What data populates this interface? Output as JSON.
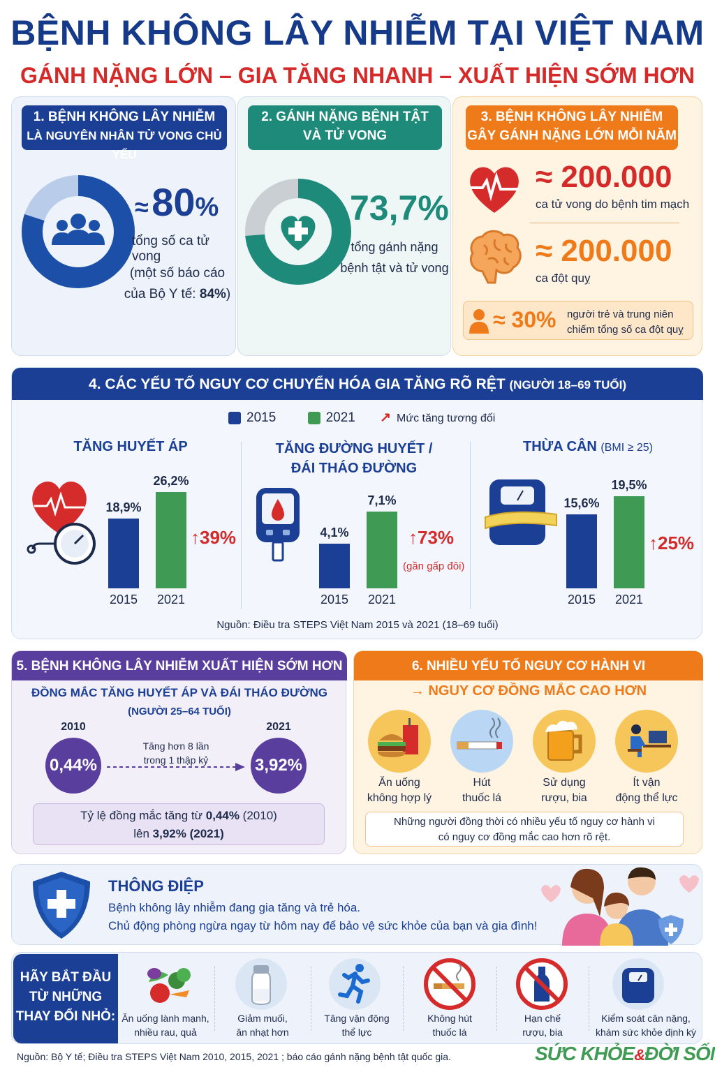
{
  "header": {
    "title": "BỆNH KHÔNG LÂY NHIỄM TẠI VIỆT NAM",
    "subtitle": "GÁNH NẶNG LỚN – GIA TĂNG NHANH – XUẤT HIỆN SỚM HƠN"
  },
  "colors": {
    "navy": "#1b3f94",
    "teal": "#1d8a7a",
    "orange": "#ee7a1a",
    "red": "#d42a2a",
    "green": "#3f9a53",
    "purple": "#5a3e9e"
  },
  "s1": {
    "h1": "1. BỆNH KHÔNG LÂY NHIỄM",
    "h2": "LÀ NGUYÊN NHÂN TỬ VONG CHỦ YẾU",
    "approx": "≈",
    "value": "80",
    "unit": "%",
    "caption": "tổng số ca tử vong",
    "note1": "(một số báo cáo",
    "note2a": "của Bộ Y tế: ",
    "note2b": "84%",
    "note2c": ")",
    "icon": "people-group-icon",
    "donut_fraction": 0.8
  },
  "s2": {
    "h1": "2. GÁNH NẶNG BỆNH TẬT",
    "h2": "VÀ TỬ VONG",
    "value": "73,7%",
    "caption1": "tổng gánh nặng",
    "caption2": "bệnh tật và tử vong",
    "icon": "heart-cross-icon",
    "donut_fraction": 0.737
  },
  "s3": {
    "h1": "3. BỆNH KHÔNG LÂY NHIỄM",
    "h2": "GÂY GÁNH NẶNG LỚN MỖI NĂM",
    "v1": "≈ 200.000",
    "c1": "ca tử vong do bệnh tim mạch",
    "v2": "≈ 200.000",
    "c2": "ca đột quỵ",
    "v3": "≈ 30%",
    "c3a": "người trẻ và trung niên",
    "c3b": "chiếm tổng số ca đột quỵ"
  },
  "s4": {
    "title": "4. CÁC YẾU TỐ NGUY CƠ CHUYỂN HÓA GIA TĂNG RÕ RỆT",
    "title_note": "(NGƯỜI 18–69 TUỔI)",
    "legend": {
      "a": "2015",
      "b": "2021",
      "c": "Mức tăng tương đối"
    },
    "source": "Nguồn: Điều tra STEPS Việt Nam 2015 và 2021 (18–69 tuổi)"
  },
  "chart_data": [
    {
      "type": "bar",
      "title": "TĂNG HUYẾT ÁP",
      "categories": [
        "2015",
        "2021"
      ],
      "values": [
        18.9,
        26.2
      ],
      "labels": [
        "18,9%",
        "26,2%"
      ],
      "change": "39%",
      "note": ""
    },
    {
      "type": "bar",
      "title": "TĂNG ĐƯỜNG HUYẾT /",
      "title2": "ĐÁI THÁO ĐƯỜNG",
      "categories": [
        "2015",
        "2021"
      ],
      "values": [
        4.1,
        7.1
      ],
      "labels": [
        "4,1%",
        "7,1%"
      ],
      "change": "73%",
      "note": "(gần gấp đôi)"
    },
    {
      "type": "bar",
      "title": "THỪA CÂN",
      "title_note": "(BMI ≥ 25)",
      "categories": [
        "2015",
        "2021"
      ],
      "values": [
        15.6,
        19.5
      ],
      "labels": [
        "15,6%",
        "19,5%"
      ],
      "change": "25%",
      "note": ""
    }
  ],
  "s5": {
    "title": "5. BỆNH KHÔNG LÂY NHIỄM XUẤT HIỆN SỚM HƠN",
    "sub1": "ĐỒNG MẮC TĂNG HUYẾT ÁP VÀ ĐÁI THÁO ĐƯỜNG",
    "sub2": "(NGƯỜI 25–64 TUỔI)",
    "y1": "2010",
    "v1": "0,44%",
    "y2": "2021",
    "v2": "3,92%",
    "arrow1": "Tăng hơn 8 lần",
    "arrow2": "trong 1 thập kỷ",
    "box1a": "Tỷ lệ đồng mắc tăng từ ",
    "box1b": "0,44%",
    "box1c": " (2010)",
    "box2a": "lên ",
    "box2b": "3,92% (2021)"
  },
  "s6": {
    "title": "6. NHIỀU YẾU TỐ NGUY CƠ HÀNH VI",
    "sub": "→ NGUY CƠ ĐỒNG MẮC CAO HƠN",
    "items": [
      {
        "l1": "Ăn uống",
        "l2": "không hợp lý",
        "icon": "fast-food-icon"
      },
      {
        "l1": "Hút",
        "l2": "thuốc lá",
        "icon": "cigarette-icon"
      },
      {
        "l1": "Sử dụng",
        "l2": "rượu, bia",
        "icon": "beer-mug-icon"
      },
      {
        "l1": "Ít vận",
        "l2": "động thể lực",
        "icon": "sedentary-person-icon"
      }
    ],
    "note1": "Những người đồng thời có nhiều yếu tố nguy cơ hành vi",
    "note2": "có nguy cơ đồng mắc cao hơn rõ rệt."
  },
  "message": {
    "title": "THÔNG ĐIỆP",
    "line1": "Bệnh không lây nhiễm đang gia tăng và trẻ hóa.",
    "line2": "Chủ động phòng ngừa ngay từ hôm nay để bảo vệ sức khỏe của bạn và gia đình!"
  },
  "actions": {
    "lead1": "HÃY BẮT ĐẦU",
    "lead2": "TỪ NHỮNG",
    "lead3": "THAY ĐỔI NHỎ:",
    "items": [
      {
        "l1": "Ăn uống lành mạnh,",
        "l2": "nhiều rau, quả",
        "icon": "vegetables-icon"
      },
      {
        "l1": "Giảm muối,",
        "l2": "ăn nhạt hơn",
        "icon": "salt-shaker-icon"
      },
      {
        "l1": "Tăng vận động",
        "l2": "thể lực",
        "icon": "running-person-icon"
      },
      {
        "l1": "Không hút",
        "l2": "thuốc lá",
        "icon": "no-smoking-icon"
      },
      {
        "l1": "Hạn chế",
        "l2": "rượu, bia",
        "icon": "no-alcohol-icon"
      },
      {
        "l1": "Kiểm soát cân nặng,",
        "l2": "khám sức khỏe định kỳ",
        "icon": "weighing-scale-icon"
      }
    ]
  },
  "footer": {
    "source": "Nguồn: Bộ Y tế; Điều tra STEPS Việt Nam 2010, 2015, 2021 ; báo cáo gánh nặng bệnh tật quốc gia.",
    "brand1": "SỨC KHỎE",
    "brand_amp": "&",
    "brand2": "ĐỜI SỐNG"
  }
}
